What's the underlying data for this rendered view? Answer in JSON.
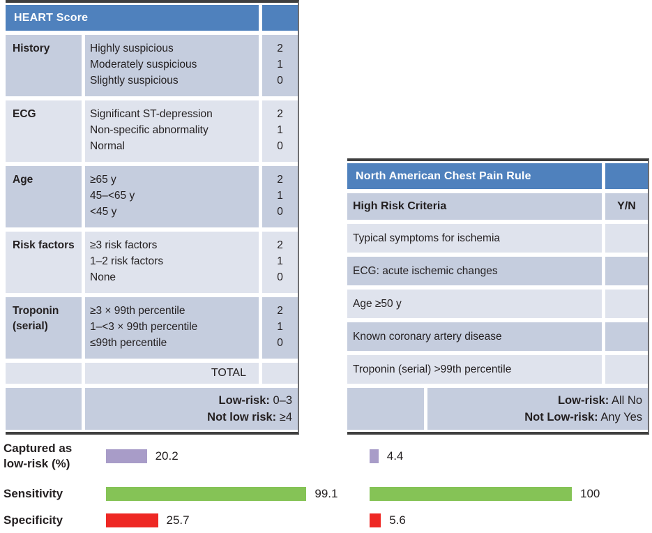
{
  "heart_table": {
    "title": "HEART Score",
    "rows": [
      {
        "label": "History",
        "options": [
          "Highly suspicious",
          "Moderately suspicious",
          "Slightly suspicious"
        ],
        "scores": [
          "2",
          "1",
          "0"
        ]
      },
      {
        "label": "ECG",
        "options": [
          "Significant ST-depression",
          "Non-specific abnormality",
          "Normal"
        ],
        "scores": [
          "2",
          "1",
          "0"
        ]
      },
      {
        "label": "Age",
        "options": [
          "≥65 y",
          "45–<65 y",
          "<45 y"
        ],
        "scores": [
          "2",
          "1",
          "0"
        ]
      },
      {
        "label": "Risk factors",
        "options": [
          "≥3 risk factors",
          "1–2 risk factors",
          "None"
        ],
        "scores": [
          "2",
          "1",
          "0"
        ]
      },
      {
        "label": "Troponin (serial)",
        "options": [
          "≥3 × 99th percentile",
          "1–<3 × 99th percentile",
          "≤99th percentile"
        ],
        "scores": [
          "2",
          "1",
          "0"
        ]
      }
    ],
    "total_label": "TOTAL",
    "low_risk_label": "Low-risk:",
    "low_risk_value": "0–3",
    "not_low_risk_label": "Not low risk:",
    "not_low_risk_value": "≥4"
  },
  "nacpr_table": {
    "title": "North American Chest Pain Rule",
    "criteria_header": "High Risk Criteria",
    "yn_header": "Y/N",
    "criteria": [
      "Typical symptoms for ischemia",
      "ECG: acute ischemic changes",
      "Age ≥50 y",
      "Known coronary artery disease",
      "Troponin (serial) >99th percentile"
    ],
    "low_risk_label": "Low-risk:",
    "low_risk_value": "All No",
    "not_low_risk_label": "Not Low-risk:",
    "not_low_risk_value": "Any Yes"
  },
  "chart_data": {
    "type": "bar",
    "orientation": "horizontal",
    "metrics": [
      "Captured as low-risk (%)",
      "Sensitivity",
      "Specificity"
    ],
    "series": [
      {
        "name": "HEART Score",
        "values": [
          20.2,
          99.1,
          25.7
        ]
      },
      {
        "name": "North American Chest Pain Rule",
        "values": [
          4.4,
          100,
          5.6
        ]
      }
    ],
    "colors": {
      "captured": "#a89cc8",
      "sensitivity": "#85c356",
      "specificity": "#ee2824"
    },
    "xlim": [
      0,
      100
    ],
    "grid": false,
    "value_labels": true
  }
}
